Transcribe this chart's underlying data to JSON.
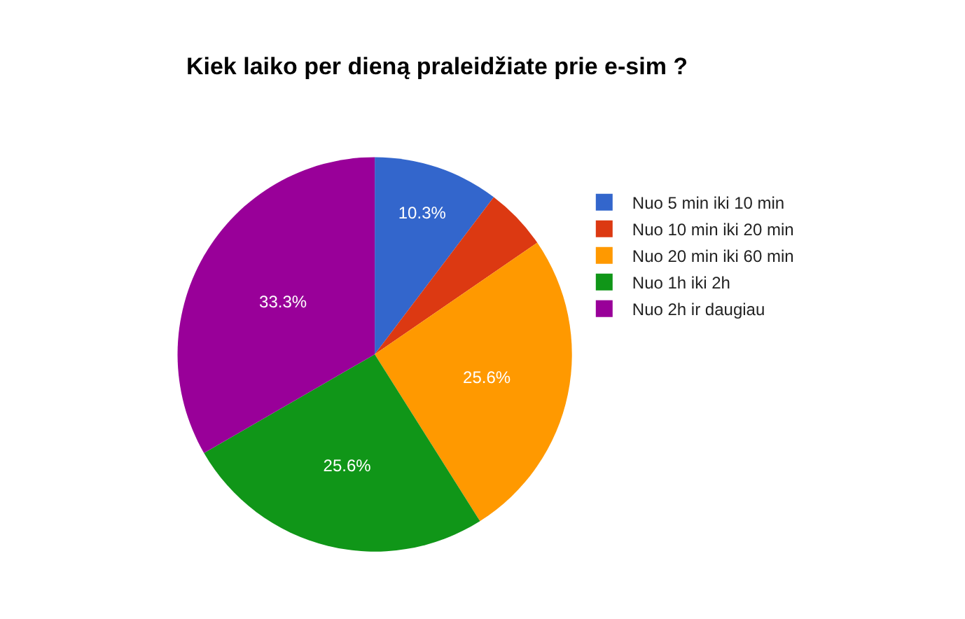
{
  "chart_data": {
    "type": "pie",
    "title": "Kiek laiko per dieną praleidžiate prie e-sim ?",
    "categories": [
      "Nuo 5 min iki 10 min",
      "Nuo 10 min iki 20 min",
      "Nuo 20 min iki 60 min",
      "Nuo 1h iki 2h",
      "Nuo 2h ir daugiau"
    ],
    "values": [
      10.3,
      5.1,
      25.6,
      25.6,
      33.3
    ],
    "colors": [
      "#3366cc",
      "#dc3912",
      "#ff9900",
      "#109618",
      "#990099"
    ],
    "value_labels": [
      "10.3%",
      null,
      "25.6%",
      "25.6%",
      "33.3%"
    ],
    "legend": "right"
  }
}
